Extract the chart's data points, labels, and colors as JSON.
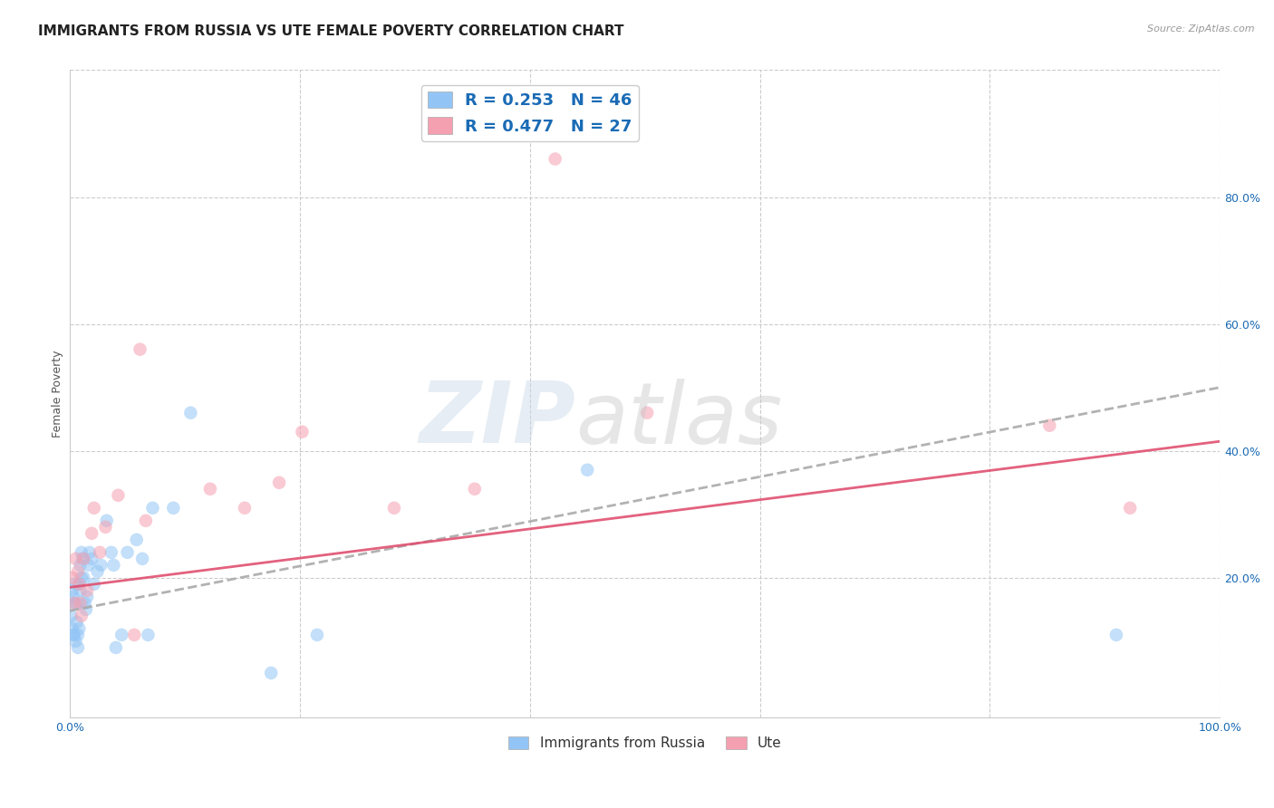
{
  "title": "IMMIGRANTS FROM RUSSIA VS UTE FEMALE POVERTY CORRELATION CHART",
  "source": "Source: ZipAtlas.com",
  "ylabel": "Female Poverty",
  "xlim": [
    0,
    1.0
  ],
  "ylim": [
    -0.02,
    1.0
  ],
  "background_color": "#ffffff",
  "legend_label1": "Immigrants from Russia",
  "legend_label2": "Ute",
  "blue_color": "#92c5f5",
  "blue_line_color": "#7ab0d8",
  "pink_color": "#f5a0b0",
  "pink_line_color": "#e05070",
  "legend_text_color": "#1a6bb5",
  "blue_scatter_x": [
    0.001,
    0.002,
    0.002,
    0.003,
    0.003,
    0.004,
    0.004,
    0.005,
    0.005,
    0.006,
    0.006,
    0.007,
    0.007,
    0.008,
    0.008,
    0.009,
    0.009,
    0.01,
    0.01,
    0.011,
    0.012,
    0.013,
    0.014,
    0.015,
    0.016,
    0.017,
    0.019,
    0.021,
    0.024,
    0.027,
    0.032,
    0.036,
    0.038,
    0.04,
    0.045,
    0.05,
    0.058,
    0.063,
    0.068,
    0.072,
    0.09,
    0.105,
    0.175,
    0.215,
    0.45,
    0.91
  ],
  "blue_scatter_y": [
    0.14,
    0.12,
    0.18,
    0.11,
    0.17,
    0.11,
    0.16,
    0.1,
    0.19,
    0.16,
    0.13,
    0.11,
    0.09,
    0.12,
    0.19,
    0.18,
    0.22,
    0.2,
    0.24,
    0.23,
    0.2,
    0.16,
    0.15,
    0.17,
    0.22,
    0.24,
    0.23,
    0.19,
    0.21,
    0.22,
    0.29,
    0.24,
    0.22,
    0.09,
    0.11,
    0.24,
    0.26,
    0.23,
    0.11,
    0.31,
    0.31,
    0.46,
    0.05,
    0.11,
    0.37,
    0.11
  ],
  "pink_scatter_x": [
    0.002,
    0.004,
    0.005,
    0.007,
    0.008,
    0.009,
    0.01,
    0.012,
    0.015,
    0.019,
    0.021,
    0.026,
    0.031,
    0.042,
    0.056,
    0.061,
    0.066,
    0.122,
    0.152,
    0.182,
    0.202,
    0.282,
    0.352,
    0.422,
    0.502,
    0.852,
    0.922
  ],
  "pink_scatter_y": [
    0.2,
    0.16,
    0.23,
    0.21,
    0.19,
    0.16,
    0.14,
    0.23,
    0.18,
    0.27,
    0.31,
    0.24,
    0.28,
    0.33,
    0.11,
    0.56,
    0.29,
    0.34,
    0.31,
    0.35,
    0.43,
    0.31,
    0.34,
    0.86,
    0.46,
    0.44,
    0.31
  ],
  "blue_line_x": [
    0.0,
    1.0
  ],
  "blue_line_y_start": 0.148,
  "blue_line_y_end": 0.5,
  "pink_line_x": [
    0.0,
    1.0
  ],
  "pink_line_y_start": 0.185,
  "pink_line_y_end": 0.415,
  "grid_color": "#cccccc",
  "title_fontsize": 11,
  "axis_label_fontsize": 9,
  "tick_fontsize": 9,
  "marker_size": 110,
  "marker_alpha": 0.55,
  "line_width": 2.0
}
